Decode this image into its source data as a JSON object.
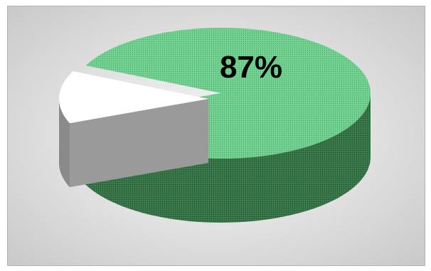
{
  "chart_data": {
    "type": "pie",
    "title": "",
    "style": "3d",
    "slices": [
      {
        "value": 87,
        "label": "87%",
        "color": "#6fcf8c",
        "side_color": "#2f6b3e",
        "exploded": false
      },
      {
        "value": 13,
        "label": "",
        "color": "#ffffff",
        "side_color": "#8a8a8a",
        "exploded": true
      }
    ],
    "legend": "none"
  }
}
